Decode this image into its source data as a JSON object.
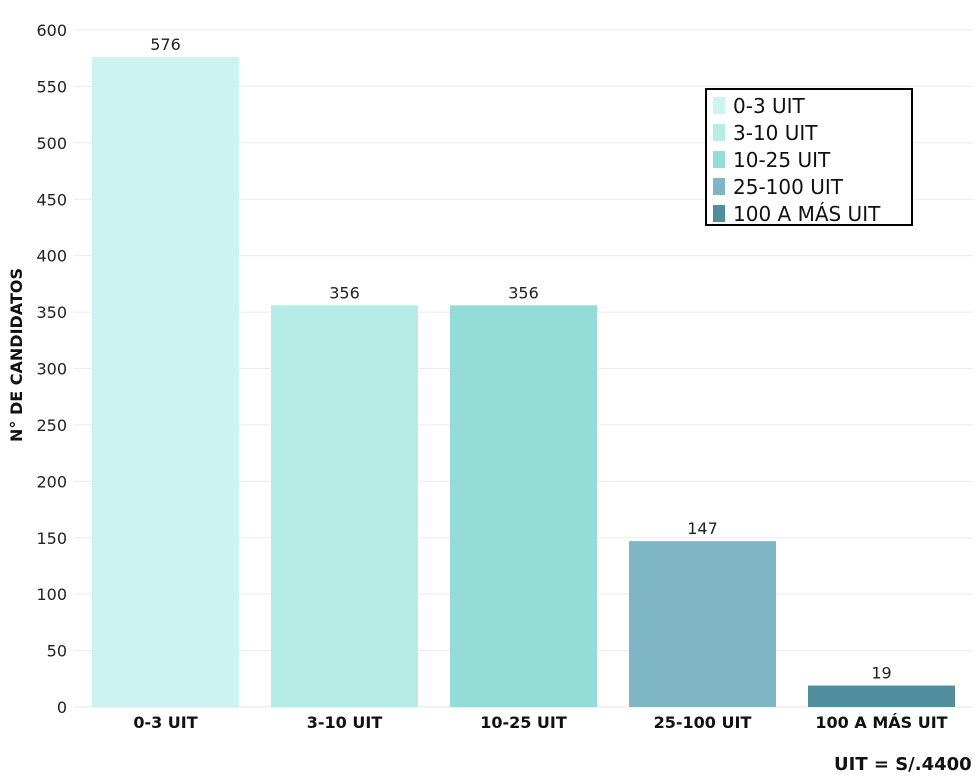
{
  "chart_data": {
    "type": "bar",
    "categories": [
      "0-3 UIT",
      "3-10 UIT",
      "10-25 UIT",
      "25-100 UIT",
      "100 A MÁS UIT"
    ],
    "values": [
      576,
      356,
      356,
      147,
      19
    ],
    "colors": [
      "#ccf2f2",
      "#b5ede6",
      "#95dcd9",
      "#7eb6c6",
      "#528d9d"
    ],
    "ylabel": "N° DE CANDIDATOS",
    "xlabel": "",
    "ylim": [
      0,
      600
    ],
    "yticks": [
      0,
      50,
      100,
      150,
      200,
      250,
      300,
      350,
      400,
      450,
      500,
      550,
      600
    ],
    "grid": true,
    "legend": {
      "position": "top-right",
      "entries": [
        "0-3 UIT",
        "3-10 UIT",
        "10-25 UIT",
        "25-100 UIT",
        "100 A MÁS UIT"
      ]
    }
  },
  "footnote": "UIT = S/.4400"
}
